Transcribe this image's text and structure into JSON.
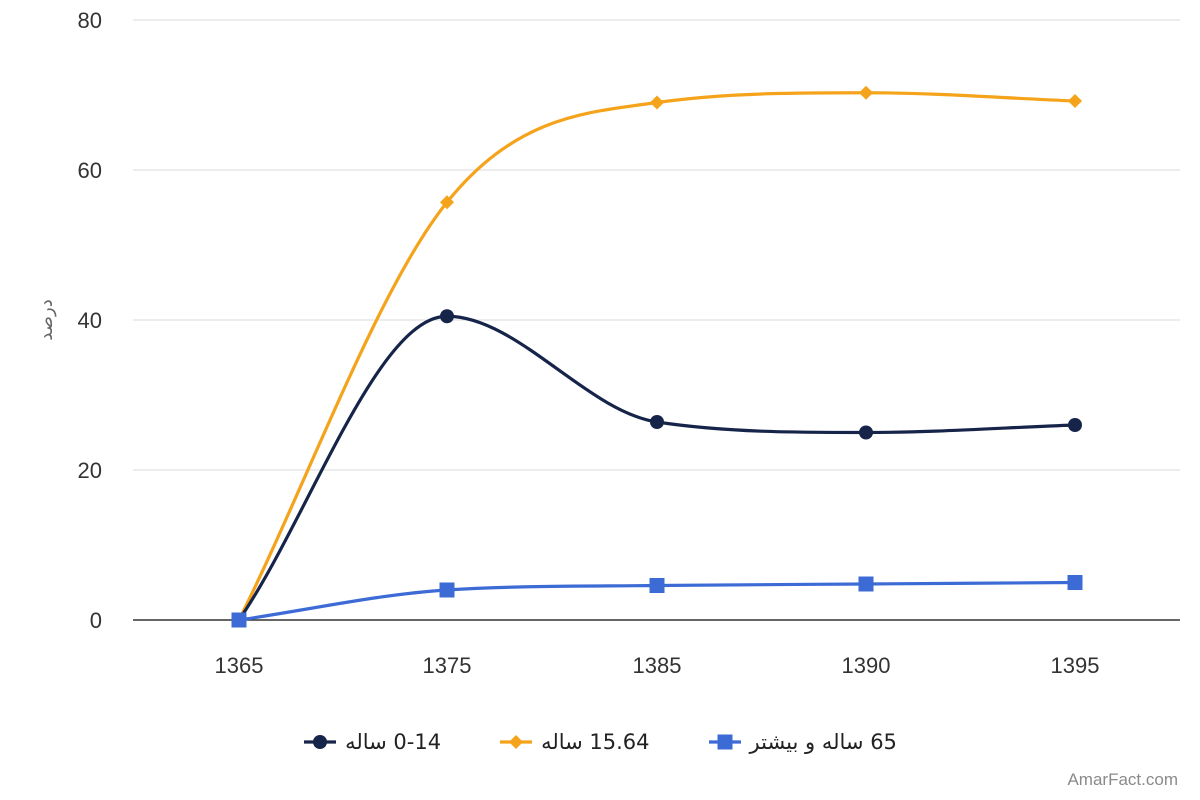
{
  "chart_data": {
    "type": "line",
    "title": "",
    "xlabel": "",
    "ylabel": "درصد",
    "categories": [
      "1365",
      "1375",
      "1385",
      "1390",
      "1395"
    ],
    "ylim": [
      0,
      80
    ],
    "yticks": [
      0,
      20,
      40,
      60,
      80
    ],
    "grid": true,
    "legend": "bottom-center",
    "series": [
      {
        "name": "0-14 ساله",
        "color": "#16244a",
        "marker": "circle",
        "values": [
          0,
          40.5,
          26.4,
          25,
          26
        ]
      },
      {
        "name": "15.64 ساله",
        "color": "#f4a31b",
        "marker": "diamond",
        "values": [
          0,
          55.7,
          69,
          70.3,
          69.2
        ]
      },
      {
        "name": "65 ساله و بیشتر",
        "color": "#3d6bd6",
        "marker": "square",
        "values": [
          0,
          4,
          4.6,
          4.8,
          5
        ]
      }
    ]
  },
  "watermark": "AmarFact.com"
}
